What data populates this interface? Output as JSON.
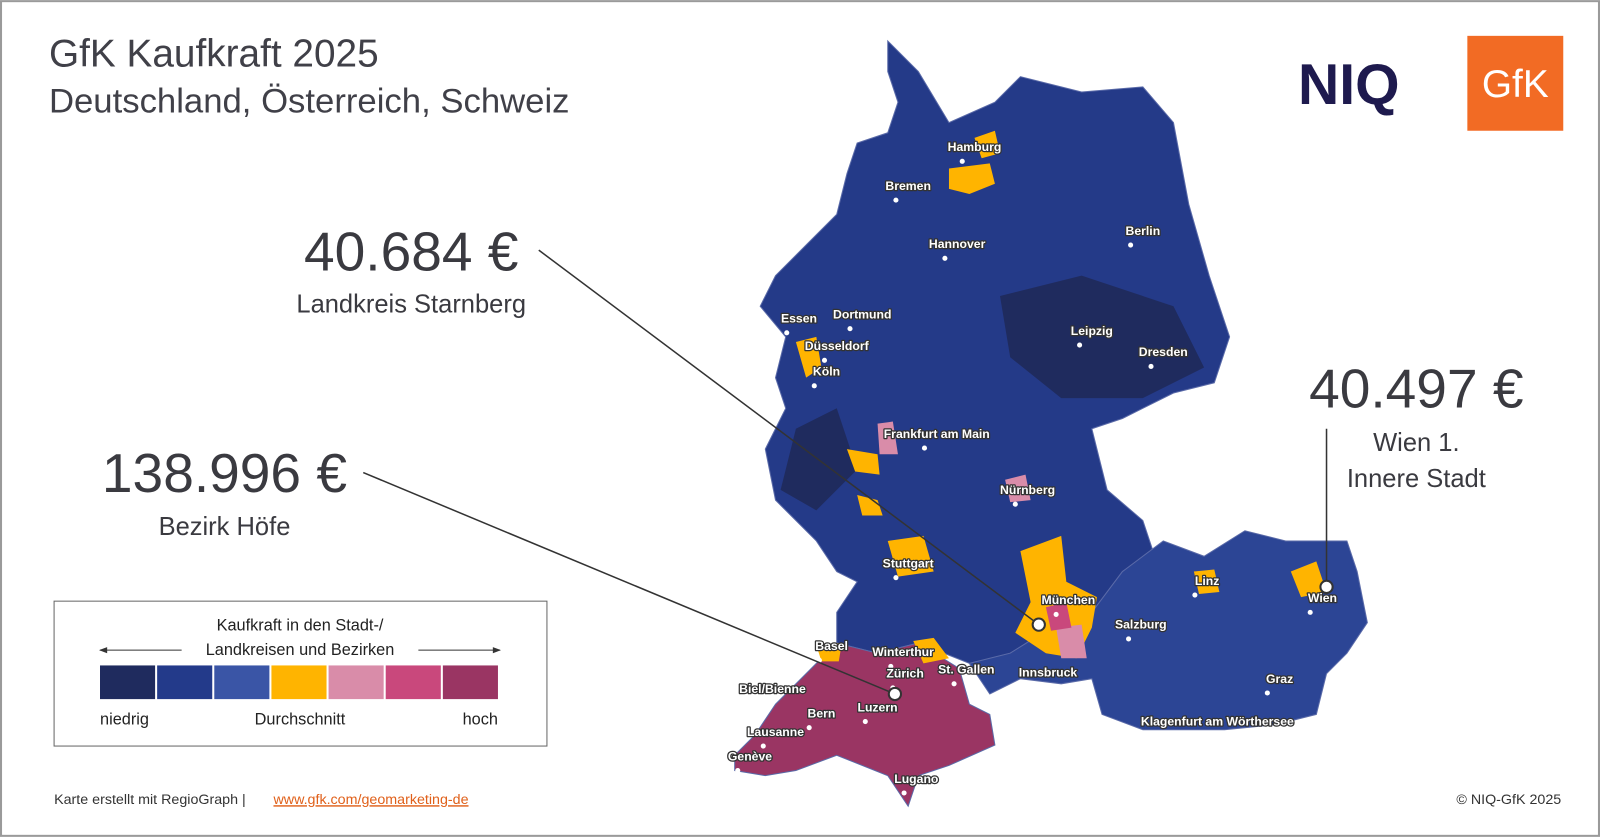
{
  "header": {
    "title": "GfK Kaufkraft 2025",
    "subtitle": "Deutschland, Österreich, Schweiz"
  },
  "logos": {
    "niq": "NIQ",
    "gfk": "GfK"
  },
  "callouts": [
    {
      "value": "40.684 €",
      "label": [
        "Landkreis Starnberg"
      ]
    },
    {
      "value": "138.996 €",
      "label": [
        "Bezirk Höfe"
      ]
    },
    {
      "value": "40.497 €",
      "label": [
        "Wien 1.",
        "Innere Stadt"
      ]
    }
  ],
  "legend": {
    "title": [
      "Kaufkraft in den Stadt-/",
      "Landkreisen und Bezirken"
    ],
    "colors": [
      "#1f2b5e",
      "#233a8a",
      "#3a55a6",
      "#ffb400",
      "#d98ca9",
      "#c9487c",
      "#9a3563"
    ],
    "low": "niedrig",
    "mid": "Durchschnitt",
    "high": "hoch"
  },
  "cities": [
    "Hamburg",
    "Bremen",
    "Hannover",
    "Berlin",
    "Essen",
    "Dortmund",
    "Düsseldorf",
    "Köln",
    "Leipzig",
    "Dresden",
    "Frankfurt am Main",
    "Nürnberg",
    "Stuttgart",
    "München",
    "Salzburg",
    "Linz",
    "Wien",
    "Basel",
    "Winterthur",
    "Zürich",
    "St. Gallen",
    "Innsbruck",
    "Graz",
    "Biel/Bienne",
    "Luzern",
    "Bern",
    "Lausanne",
    "Genève",
    "Lugano",
    "Klagenfurt am Wörthersee"
  ],
  "footer": {
    "credit": "Karte erstellt mit RegioGraph |",
    "link": "www.gfk.com/geomarketing-de",
    "copyright": "© NIQ-GfK 2025"
  }
}
